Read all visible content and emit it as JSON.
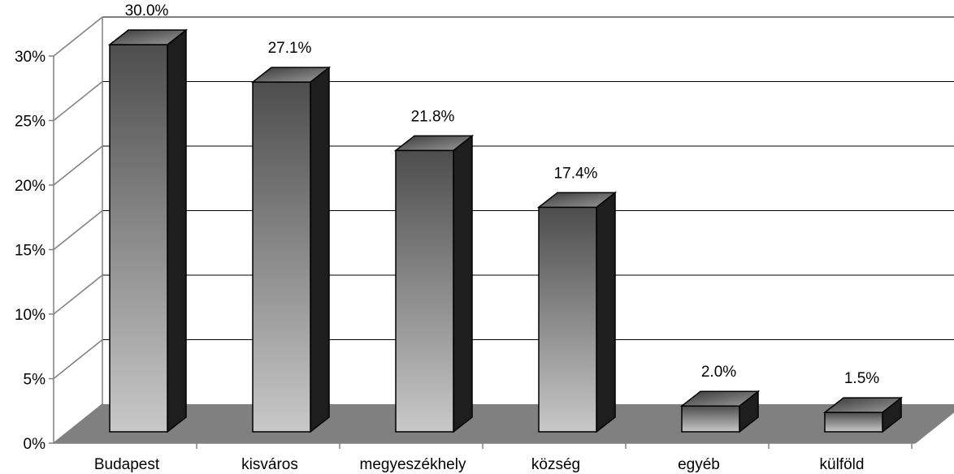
{
  "chart_data": {
    "type": "bar",
    "style": "3d-column",
    "categories": [
      "Budapest",
      "kisváros",
      "megyeszékhely",
      "község",
      "egyéb",
      "külföld"
    ],
    "values": [
      30.0,
      27.1,
      21.8,
      17.4,
      2.0,
      1.5
    ],
    "data_labels": [
      "30.0%",
      "27.1%",
      "21.8%",
      "17.4%",
      "2.0%",
      "1.5%"
    ],
    "y_ticks": [
      "0%",
      "5%",
      "10%",
      "15%",
      "20%",
      "25%",
      "30%"
    ],
    "y_tick_values": [
      0,
      5,
      10,
      15,
      20,
      25,
      30
    ],
    "ylim": [
      0,
      30
    ],
    "grid": true,
    "legend": "none",
    "title": "",
    "xlabel": "",
    "ylabel": ""
  },
  "colors": {
    "floor": "#808080",
    "bar_dark": "#4d4d4d",
    "bar_light": "#c8c8c8",
    "bar_side": "#1e1e1e",
    "bar_top": "#5a5a5a",
    "axis": "#808080",
    "grid": "#000000"
  }
}
